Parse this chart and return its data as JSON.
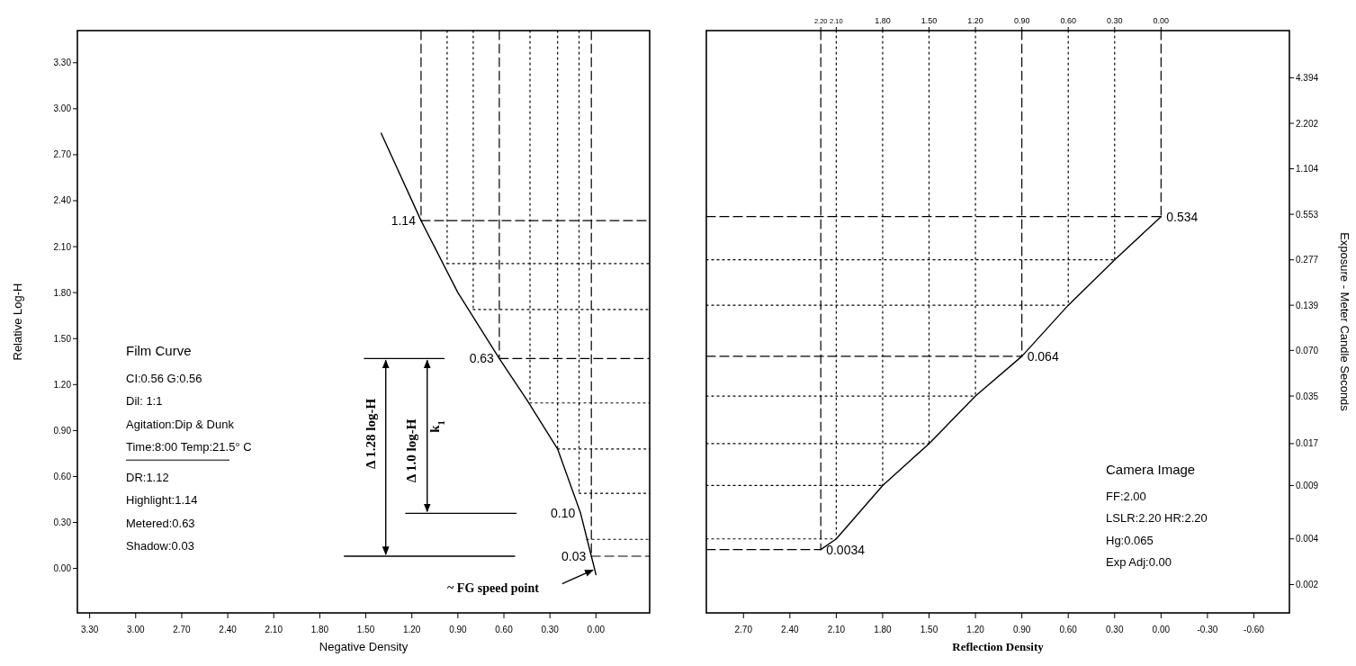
{
  "chart_data": [
    {
      "type": "line",
      "xlabel": "Negative Density",
      "ylabel": "Relative Log-H",
      "xlim": [
        3.38,
        -0.35
      ],
      "ylim": [
        -0.29,
        3.51
      ],
      "xticks": [
        {
          "value": 3.3,
          "label": "3.30"
        },
        {
          "value": 3.0,
          "label": "3.00"
        },
        {
          "value": 2.7,
          "label": "2.70"
        },
        {
          "value": 2.4,
          "label": "2.40"
        },
        {
          "value": 2.1,
          "label": "2.10"
        },
        {
          "value": 1.8,
          "label": "1.80"
        },
        {
          "value": 1.5,
          "label": "1.50"
        },
        {
          "value": 1.2,
          "label": "1.20"
        },
        {
          "value": 0.9,
          "label": "0.90"
        },
        {
          "value": 0.6,
          "label": "0.60"
        },
        {
          "value": 0.3,
          "label": "0.30"
        },
        {
          "value": 0,
          "label": "0.00"
        }
      ],
      "yticks": [
        {
          "value": 0,
          "label": "0.00"
        },
        {
          "value": 0.3,
          "label": "0.30"
        },
        {
          "value": 0.6,
          "label": "0.60"
        },
        {
          "value": 0.9,
          "label": "0.90"
        },
        {
          "value": 1.2,
          "label": "1.20"
        },
        {
          "value": 1.5,
          "label": "1.50"
        },
        {
          "value": 1.8,
          "label": "1.80"
        },
        {
          "value": 2.1,
          "label": "2.10"
        },
        {
          "value": 2.4,
          "label": "2.40"
        },
        {
          "value": 2.7,
          "label": "2.70"
        },
        {
          "value": 3.0,
          "label": "3.00"
        },
        {
          "value": 3.3,
          "label": "3.30"
        }
      ],
      "series": [
        {
          "color": "#000000",
          "line_style": "solid",
          "x": [
            1.4,
            1.14,
            0.9,
            0.63,
            0.45,
            0.25,
            0.1,
            0.03,
            0.0
          ],
          "values": [
            2.84,
            2.27,
            1.8,
            1.37,
            1.1,
            0.78,
            0.36,
            0.08,
            -0.04
          ]
        },
        {
          "color": "#000000",
          "line_style": "dashed",
          "x": [
            1.14,
            1.14
          ],
          "values": [
            3.51,
            2.27
          ]
        },
        {
          "color": "#000000",
          "line_style": "dotted",
          "x": [
            0.97,
            0.97
          ],
          "values": [
            3.51,
            1.99
          ]
        },
        {
          "color": "#000000",
          "line_style": "dotted",
          "x": [
            0.8,
            0.8
          ],
          "values": [
            3.51,
            1.69
          ]
        },
        {
          "color": "#000000",
          "line_style": "dashed",
          "x": [
            0.63,
            0.63
          ],
          "values": [
            3.51,
            1.37
          ]
        },
        {
          "color": "#000000",
          "line_style": "dotted",
          "x": [
            0.43,
            0.43
          ],
          "values": [
            3.51,
            1.08
          ]
        },
        {
          "color": "#000000",
          "line_style": "dotted",
          "x": [
            0.25,
            0.25
          ],
          "values": [
            3.51,
            0.78
          ]
        },
        {
          "color": "#000000",
          "line_style": "dotted",
          "x": [
            0.11,
            0.11
          ],
          "values": [
            3.51,
            0.49
          ]
        },
        {
          "color": "#000000",
          "line_style": "dashed",
          "x": [
            0.03,
            0.03
          ],
          "values": [
            3.51,
            0.08
          ]
        },
        {
          "color": "#000000",
          "line_style": "dashed",
          "x": [
            1.14,
            -0.35
          ],
          "values": [
            2.27,
            2.27
          ]
        },
        {
          "color": "#000000",
          "line_style": "dotted",
          "x": [
            0.97,
            -0.35
          ],
          "values": [
            1.99,
            1.99
          ]
        },
        {
          "color": "#000000",
          "line_style": "dotted",
          "x": [
            0.8,
            -0.35
          ],
          "values": [
            1.69,
            1.69
          ]
        },
        {
          "color": "#000000",
          "line_style": "dashed",
          "x": [
            0.63,
            -0.35
          ],
          "values": [
            1.37,
            1.37
          ]
        },
        {
          "color": "#000000",
          "line_style": "dotted",
          "x": [
            0.43,
            -0.35
          ],
          "values": [
            1.08,
            1.08
          ]
        },
        {
          "color": "#000000",
          "line_style": "dotted",
          "x": [
            0.25,
            -0.35
          ],
          "values": [
            0.78,
            0.78
          ]
        },
        {
          "color": "#000000",
          "line_style": "dotted",
          "x": [
            0.11,
            -0.35
          ],
          "values": [
            0.49,
            0.49
          ]
        },
        {
          "color": "#000000",
          "line_style": "dotted",
          "x": [
            0.06,
            -0.35
          ],
          "values": [
            0.19,
            0.19
          ]
        },
        {
          "color": "#000000",
          "line_style": "dashed",
          "x": [
            0.03,
            -0.35
          ],
          "values": [
            0.08,
            0.08
          ]
        },
        {
          "color": "#000000",
          "line_style": "solid",
          "x": [
            1.51,
            0.99
          ],
          "values": [
            1.37,
            1.37
          ]
        },
        {
          "color": "#000000",
          "line_style": "solid",
          "x": [
            1.24,
            0.52
          ],
          "values": [
            0.36,
            0.36
          ]
        },
        {
          "color": "#000000",
          "line_style": "solid",
          "x": [
            1.64,
            0.53
          ],
          "values": [
            0.08,
            0.08
          ]
        }
      ],
      "annotations": [
        {
          "text": "1.14",
          "x": 1.14,
          "y": 2.27
        },
        {
          "text": "0.63",
          "x": 0.63,
          "y": 1.37
        },
        {
          "text": "0.10",
          "x": 0.1,
          "y": 0.36
        },
        {
          "text": "0.03",
          "x": 0.03,
          "y": 0.08
        },
        "Δ 1.28 log-H",
        "Δ 1.0 log-H",
        "k$_{1}$",
        "~ FG speed point",
        "Film Curve",
        "CI:0.56  G:0.56",
        "Dil: 1:1",
        "Agitation:Dip & Dunk",
        "Time:8:00  Temp:21.5° C",
        "DR:1.12",
        "Highlight:1.14",
        "Metered:0.63",
        "Shadow:0.03"
      ]
    },
    {
      "type": "line",
      "xlabel": "Reflection Density",
      "y2label": "Exposure - Meter Candle Seconds",
      "xlim": [
        2.94,
        -0.83
      ],
      "x2lim": [
        2.94,
        -0.83
      ],
      "y2lim": [
        0.0013,
        9.0
      ],
      "log": "y2",
      "xticks": [
        {
          "value": 2.7,
          "label": "2.70"
        },
        {
          "value": 2.4,
          "label": "2.40"
        },
        {
          "value": 2.1,
          "label": "2.10"
        },
        {
          "value": 1.8,
          "label": "1.80"
        },
        {
          "value": 1.5,
          "label": "1.50"
        },
        {
          "value": 1.2,
          "label": "1.20"
        },
        {
          "value": 0.9,
          "label": "0.90"
        },
        {
          "value": 0.6,
          "label": "0.60"
        },
        {
          "value": 0.3,
          "label": "0.30"
        },
        {
          "value": 0,
          "label": "0.00"
        },
        {
          "value": -0.3,
          "label": "-0.30"
        },
        {
          "value": -0.6,
          "label": "-0.60"
        }
      ],
      "x2ticks": [
        {
          "value": 2.2,
          "label": "2.20"
        },
        {
          "value": 2.1,
          "label": "2.10"
        },
        {
          "value": 1.8,
          "label": "1.80"
        },
        {
          "value": 1.5,
          "label": "1.50"
        },
        {
          "value": 1.2,
          "label": "1.20"
        },
        {
          "value": 0.9,
          "label": "0.90"
        },
        {
          "value": 0.6,
          "label": "0.60"
        },
        {
          "value": 0.3,
          "label": "0.30"
        },
        {
          "value": 0,
          "label": "0.00"
        }
      ],
      "y2ticks": [
        4.394,
        2.202,
        1.104,
        0.553,
        0.277,
        0.139,
        {
          "value": 0.07,
          "label": "0.070"
        },
        0.035,
        0.017,
        0.009,
        0.004,
        0.002
      ],
      "series": [
        {
          "color": "#000000",
          "line_style": "solid",
          "axis": "y2",
          "x": [
            2.2,
            2.1,
            1.8,
            1.5,
            1.2,
            0.9,
            0.6,
            0.3,
            0.0
          ],
          "values": [
            0.0034,
            0.004,
            0.009,
            0.017,
            0.035,
            0.064,
            0.139,
            0.277,
            0.534
          ]
        },
        {
          "color": "#000000",
          "line_style": "dashed",
          "axis": "y2",
          "x": [
            2.2,
            2.2
          ],
          "values": [
            9.0,
            0.0034
          ]
        },
        {
          "color": "#000000",
          "line_style": "dotted",
          "axis": "y2",
          "x": [
            2.1,
            2.1
          ],
          "values": [
            9.0,
            0.004
          ]
        },
        {
          "color": "#000000",
          "line_style": "dotted",
          "axis": "y2",
          "x": [
            1.8,
            1.8
          ],
          "values": [
            9.0,
            0.009
          ]
        },
        {
          "color": "#000000",
          "line_style": "dotted",
          "axis": "y2",
          "x": [
            1.5,
            1.5
          ],
          "values": [
            9.0,
            0.017
          ]
        },
        {
          "color": "#000000",
          "line_style": "dotted",
          "axis": "y2",
          "x": [
            1.2,
            1.2
          ],
          "values": [
            9.0,
            0.035
          ]
        },
        {
          "color": "#000000",
          "line_style": "dashed",
          "axis": "y2",
          "x": [
            0.9,
            0.9
          ],
          "values": [
            9.0,
            0.064
          ]
        },
        {
          "color": "#000000",
          "line_style": "dotted",
          "axis": "y2",
          "x": [
            0.6,
            0.6
          ],
          "values": [
            9.0,
            0.139
          ]
        },
        {
          "color": "#000000",
          "line_style": "dotted",
          "axis": "y2",
          "x": [
            0.3,
            0.3
          ],
          "values": [
            9.0,
            0.277
          ]
        },
        {
          "color": "#000000",
          "line_style": "dashed",
          "axis": "y2",
          "x": [
            0.0,
            0.0
          ],
          "values": [
            9.0,
            0.534
          ]
        },
        {
          "color": "#000000",
          "line_style": "dashed",
          "axis": "y2",
          "x": [
            2.94,
            0.0
          ],
          "values": [
            0.534,
            0.534
          ]
        },
        {
          "color": "#000000",
          "line_style": "dotted",
          "axis": "y2",
          "x": [
            2.94,
            0.3
          ],
          "values": [
            0.277,
            0.277
          ]
        },
        {
          "color": "#000000",
          "line_style": "dotted",
          "axis": "y2",
          "x": [
            2.94,
            0.6
          ],
          "values": [
            0.139,
            0.139
          ]
        },
        {
          "color": "#000000",
          "line_style": "dashed",
          "axis": "y2",
          "x": [
            2.94,
            0.9
          ],
          "values": [
            0.064,
            0.064
          ]
        },
        {
          "color": "#000000",
          "line_style": "dotted",
          "axis": "y2",
          "x": [
            2.94,
            1.2
          ],
          "values": [
            0.035,
            0.035
          ]
        },
        {
          "color": "#000000",
          "line_style": "dotted",
          "axis": "y2",
          "x": [
            2.94,
            1.5
          ],
          "values": [
            0.017,
            0.017
          ]
        },
        {
          "color": "#000000",
          "line_style": "dotted",
          "axis": "y2",
          "x": [
            2.94,
            1.8
          ],
          "values": [
            0.009,
            0.009
          ]
        },
        {
          "color": "#000000",
          "line_style": "dotted",
          "axis": "y2",
          "x": [
            2.94,
            2.1
          ],
          "values": [
            0.004,
            0.004
          ]
        },
        {
          "color": "#000000",
          "line_style": "dashed",
          "axis": "y2",
          "x": [
            2.94,
            2.2
          ],
          "values": [
            0.0034,
            0.0034
          ]
        }
      ],
      "annotations": [
        "0.534",
        "0.064",
        "0.0034",
        "Camera Image",
        "FF:2.00",
        "LSLR:2.20 HR:2.20",
        "Hg:0.065",
        "Exp Adj:0.00"
      ]
    }
  ]
}
